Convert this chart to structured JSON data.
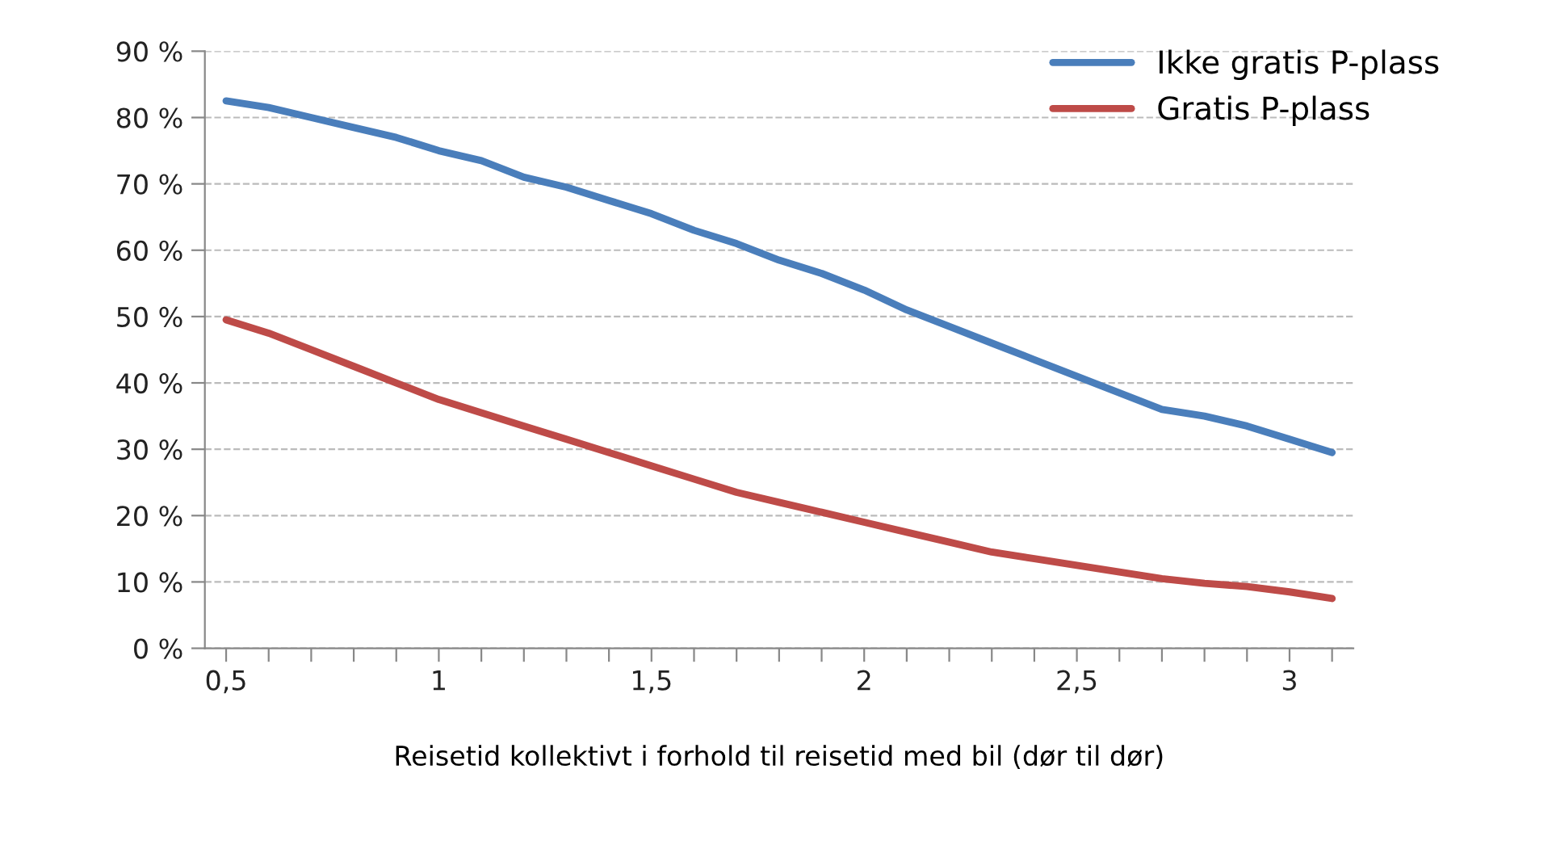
{
  "chart_data": {
    "type": "line",
    "xlabel": "Reisetid kollektivt i forhold til reisetid med bil (dør til dør)",
    "x": [
      0.5,
      0.6,
      0.7,
      0.8,
      0.9,
      1.0,
      1.1,
      1.2,
      1.3,
      1.4,
      1.5,
      1.6,
      1.7,
      1.8,
      1.9,
      2.0,
      2.1,
      2.2,
      2.3,
      2.4,
      2.5,
      2.6,
      2.7,
      2.8,
      2.9,
      3.0,
      3.1
    ],
    "series": [
      {
        "name": "Ikke gratis P-plass",
        "color": "#4a7ebb",
        "values": [
          82.5,
          81.5,
          80,
          78.5,
          77,
          75,
          73.5,
          71,
          69.5,
          67.5,
          65.5,
          63,
          61,
          58.5,
          56.5,
          54,
          51,
          48.5,
          46,
          43.5,
          41,
          38.5,
          36,
          35,
          33.5,
          31.5,
          29.5
        ]
      },
      {
        "name": "Gratis P-plass",
        "color": "#be4b48",
        "values": [
          49.5,
          47.5,
          45,
          42.5,
          40,
          37.5,
          35.5,
          33.5,
          31.5,
          29.5,
          27.5,
          25.5,
          23.5,
          22,
          20.5,
          19,
          17.5,
          16,
          14.5,
          13.5,
          12.5,
          11.5,
          10.5,
          9.8,
          9.3,
          8.5,
          7.5
        ]
      }
    ],
    "xlim": [
      0.45,
      3.15
    ],
    "xticks": [
      {
        "value": 0.5,
        "label": "0,5"
      },
      {
        "value": 0.6,
        "label": null
      },
      {
        "value": 0.7,
        "label": null
      },
      {
        "value": 0.8,
        "label": null
      },
      {
        "value": 0.9,
        "label": null
      },
      1,
      {
        "value": 1.1,
        "label": null
      },
      {
        "value": 1.2,
        "label": null
      },
      {
        "value": 1.3,
        "label": null
      },
      {
        "value": 1.4,
        "label": null
      },
      {
        "value": 1.5,
        "label": "1,5"
      },
      {
        "value": 1.6,
        "label": null
      },
      {
        "value": 1.7,
        "label": null
      },
      {
        "value": 1.8,
        "label": null
      },
      {
        "value": 1.9,
        "label": null
      },
      2,
      {
        "value": 2.1,
        "label": null
      },
      {
        "value": 2.2,
        "label": null
      },
      {
        "value": 2.3,
        "label": null
      },
      {
        "value": 2.4,
        "label": null
      },
      {
        "value": 2.5,
        "label": "2,5"
      },
      {
        "value": 2.6,
        "label": null
      },
      {
        "value": 2.7,
        "label": null
      },
      {
        "value": 2.8,
        "label": null
      },
      {
        "value": 2.9,
        "label": null
      },
      3,
      {
        "value": 3.1,
        "label": null
      }
    ],
    "ylim": [
      0,
      90
    ],
    "yticks": [
      {
        "value": 0,
        "label": "0 %"
      },
      {
        "value": 10,
        "label": "10 %"
      },
      {
        "value": 20,
        "label": "20 %"
      },
      {
        "value": 30,
        "label": "30 %"
      },
      {
        "value": 40,
        "label": "40 %"
      },
      {
        "value": 50,
        "label": "50 %"
      },
      {
        "value": 60,
        "label": "60 %"
      },
      {
        "value": 70,
        "label": "70 %"
      },
      {
        "value": 80,
        "label": "80 %"
      },
      {
        "value": 90,
        "label": "90 %"
      }
    ],
    "grid": "y",
    "legend": "top right",
    "line_style": "solid",
    "marker": "none"
  }
}
